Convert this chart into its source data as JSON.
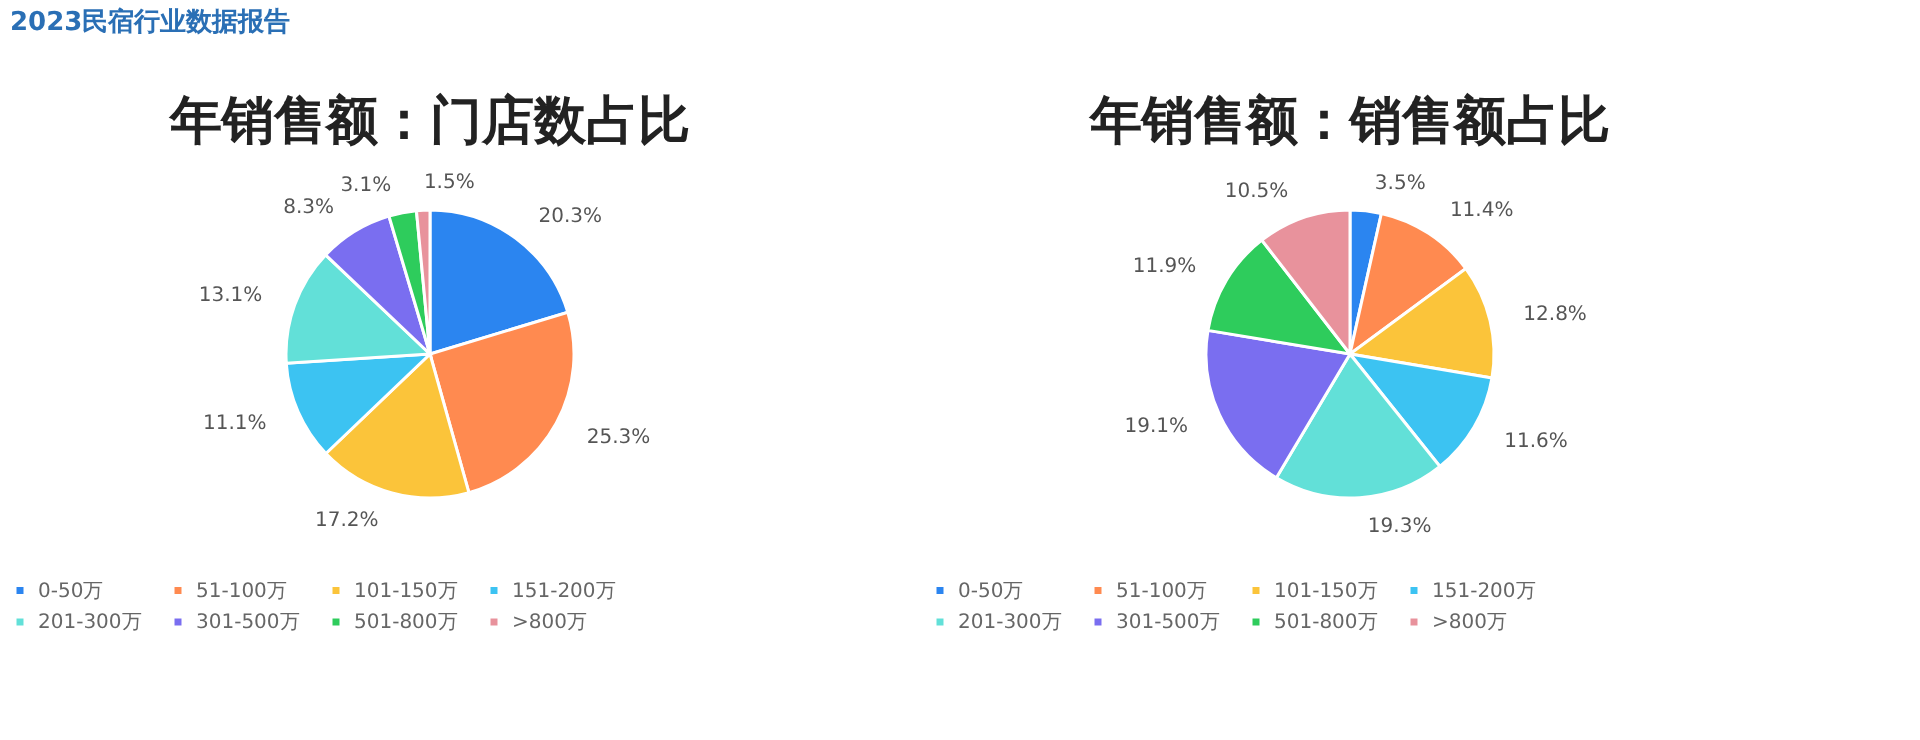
{
  "chart_data": [
    {
      "type": "pie",
      "title": "年销售额：门店数占比",
      "annotations": [
        "2023民宿行业数据报告"
      ],
      "legend": "bottom",
      "categories": [
        "0-50万",
        "51-100万",
        "101-150万",
        "151-200万",
        "201-300万",
        "301-500万",
        "501-800万",
        ">800万"
      ],
      "values": [
        20.3,
        25.3,
        17.2,
        11.1,
        13.1,
        8.3,
        3.1,
        1.5
      ],
      "value_labels": [
        "20.3%",
        "25.3%",
        "17.2%",
        "11.1%",
        "13.1%",
        "8.3%",
        "3.1%",
        "1.5%"
      ],
      "colors": [
        "#2b85f0",
        "#ff8a50",
        "#fbc43a",
        "#3cc3f2",
        "#62e0d8",
        "#7a6ef0",
        "#2ecc5c",
        "#e8929c"
      ]
    },
    {
      "type": "pie",
      "title": "年销售额：销售额占比",
      "legend": "bottom",
      "categories": [
        "0-50万",
        "51-100万",
        "101-150万",
        "151-200万",
        "201-300万",
        "301-500万",
        "501-800万",
        ">800万"
      ],
      "values": [
        3.5,
        11.4,
        12.8,
        11.6,
        19.3,
        19.1,
        11.9,
        10.5
      ],
      "value_labels": [
        "3.5%",
        "11.4%",
        "12.8%",
        "11.6%",
        "19.3%",
        "19.1%",
        "11.9%",
        "10.5%"
      ],
      "colors": [
        "#2b85f0",
        "#ff8a50",
        "#fbc43a",
        "#3cc3f2",
        "#62e0d8",
        "#7a6ef0",
        "#2ecc5c",
        "#e8929c"
      ]
    }
  ]
}
